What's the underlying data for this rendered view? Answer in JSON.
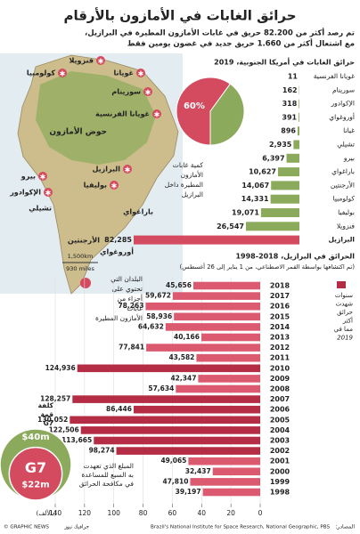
{
  "header": {
    "title": "حرائق الغابات في الأمازون بالأرقام",
    "subtitle": [
      "تم رصد أكثر من 82.200 حريق في غابات الأمازون المطيرة في البرازيل،",
      "مع اشتعال أكثر من 1.660 حريق جديد في غضون يومين فقط"
    ]
  },
  "map": {
    "labels": [
      "فنزويلا",
      "كولومبيا",
      "غويانا",
      "سورينام",
      "غويانا الفرنسية",
      "حوض الأمازون",
      "البرازيل",
      "بيرو",
      "بوليفيا",
      "الإكوادور",
      "تشيلي",
      "باراغواي",
      "الأرجنتين",
      "أوروغواي"
    ],
    "scale": [
      "1,500km",
      "930 miles"
    ],
    "legend": [
      "البلدان التي",
      "تحتوي على",
      "أجزاء من",
      "غابات",
      "الأمازون المطيرة"
    ]
  },
  "chart_data": [
    {
      "type": "hbar",
      "title": "حرائق الغابات في أمريكا الجنوبية، 2019",
      "categories": [
        "غويانا الفرنسية",
        "سورينام",
        "الإكوادور",
        "أوروغواي",
        "غيانا",
        "تشيلي",
        "بيرو",
        "باراغواي",
        "الأرجنتين",
        "كولومبيا",
        "بوليفيا",
        "فنزويلا",
        "البرازيل"
      ],
      "values": [
        11,
        162,
        318,
        391,
        896,
        2935,
        6397,
        10627,
        14067,
        14331,
        19071,
        26547,
        82285
      ],
      "value_labels": [
        "11",
        "162",
        "318",
        "391",
        "896",
        "2,935",
        "6,397",
        "10,627",
        "14,067",
        "14,331",
        "19,071",
        "26,547",
        "82,285"
      ],
      "colors": [
        "#8caa5c",
        "#8caa5c",
        "#8caa5c",
        "#8caa5c",
        "#8caa5c",
        "#8caa5c",
        "#8caa5c",
        "#8caa5c",
        "#8caa5c",
        "#8caa5c",
        "#8caa5c",
        "#8caa5c",
        "#d44a5e"
      ]
    },
    {
      "type": "pie",
      "label": [
        "كمية غابات",
        "الأمازون",
        "المطيرة داخل",
        "البرازيل"
      ],
      "values": [
        60,
        40
      ],
      "value_labels": [
        "60%",
        null
      ],
      "colors": [
        "#d44a5e",
        "#8caa5c"
      ]
    },
    {
      "type": "hbar_axis",
      "title": "الحرائق في البرازيل، 2018-1998",
      "subtitle": "(تم اكتشافها بواسطة القمر الاصطناعي، من 1 يناير إلى 26 أغسطس)",
      "categories": [
        "2018",
        "2017",
        "2016",
        "2015",
        "2014",
        "2013",
        "2012",
        "2011",
        "2010",
        "2009",
        "2008",
        "2007",
        "2006",
        "2005",
        "2004",
        "2003",
        "2002",
        "2001",
        "2000",
        "1999",
        "1998"
      ],
      "values": [
        45.656,
        59.672,
        78.263,
        58.936,
        64.632,
        40.166,
        77.841,
        43.582,
        124.936,
        42.347,
        57.634,
        128.257,
        86.446,
        130.052,
        122.506,
        113.665,
        98.274,
        49.065,
        32.437,
        47.81,
        39.197
      ],
      "value_labels": [
        "45,656",
        "59,672",
        "78,263",
        "58,936",
        "64,632",
        "40,166",
        "77,841",
        "43,582",
        "124,936",
        "42,347",
        "57,634",
        "128,257",
        "86,446",
        "130,052",
        "122,506",
        "113,665",
        "98,274",
        "49,065",
        "32,437",
        "47,810",
        "39,197"
      ],
      "colors": [
        "#dc5a70",
        "#dc5a70",
        "#dc5a70",
        "#dc5a70",
        "#dc5a70",
        "#dc5a70",
        "#dc5a70",
        "#dc5a70",
        "#b52d45",
        "#dc5a70",
        "#dc5a70",
        "#b52d45",
        "#b52d45",
        "#b52d45",
        "#b52d45",
        "#b52d45",
        "#b52d45",
        "#dc5a70",
        "#dc5a70",
        "#dc5a70",
        "#dc5a70"
      ],
      "legend": [
        "سنوات",
        "شهدت",
        "حرائق",
        "أكثر",
        "مما في",
        "2019"
      ],
      "legend_color": "#b52d45",
      "xlim": [
        0,
        140
      ],
      "xticks": [
        0,
        20,
        40,
        60,
        80,
        100,
        120,
        140
      ],
      "x_unit": "(بالألف)"
    },
    {
      "type": "circles",
      "title": [
        "كلفة",
        "قمة",
        "G7"
      ],
      "values": [
        40,
        22
      ],
      "value_labels": [
        "$40m",
        "$22m"
      ],
      "colors": [
        "#8caa5c",
        "#d44a5e"
      ],
      "inner_label": "G7",
      "note": [
        "المبلغ الذي تعهدت",
        "به السبع للمساعدة",
        "في مكافحة الحرائق"
      ]
    }
  ],
  "footer": {
    "sources_label": "المصادر:",
    "sources": "Brazil's National Institute for Space Research, National Geographic, PBS",
    "credit": "© GRAPHIC NEWS",
    "credit_ar": "جرافيك نيوز"
  }
}
